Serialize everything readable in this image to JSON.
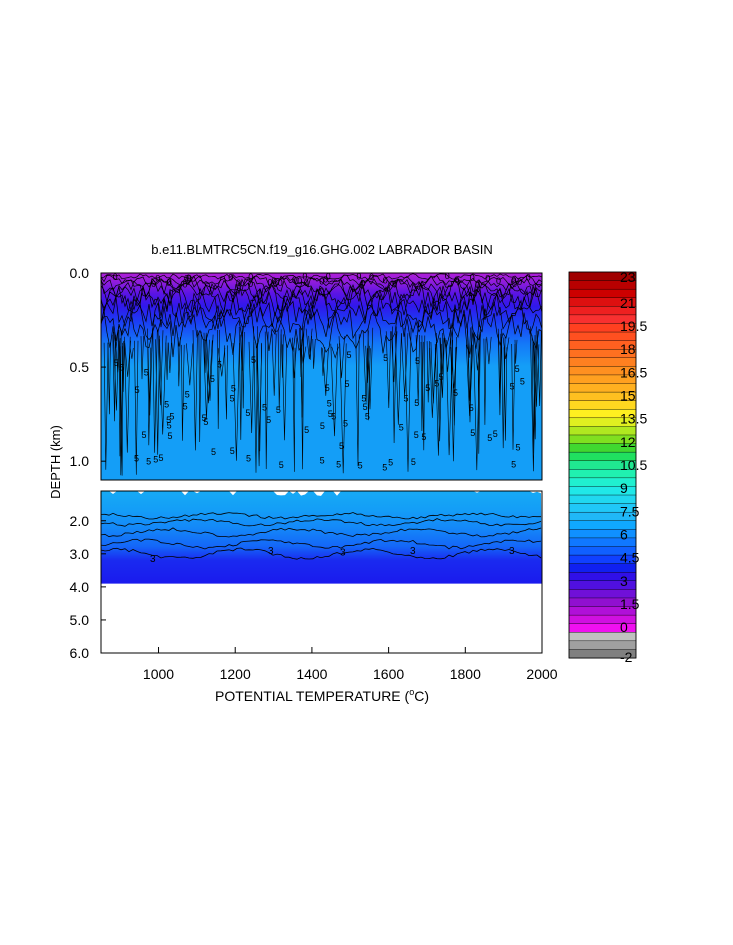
{
  "chart_data": {
    "type": "heatmap",
    "title": "b.e11.BLMTRC5CN.f19_g16.GHG.002 LABRADOR BASIN",
    "xlabel": "POTENTIAL TEMPERATURE (",
    "xlabel_unit": "o",
    "xlabel_suffix": "C)",
    "ylabel": "DEPTH (km)",
    "xlim": [
      850,
      2000
    ],
    "x_ticks": [
      "1000",
      "1200",
      "1400",
      "1600",
      "1800",
      "2000"
    ],
    "x_tick_values": [
      1000,
      1200,
      1400,
      1600,
      1800,
      2000
    ],
    "upper_panel": {
      "ylim": [
        0.0,
        1.1
      ],
      "y_ticks": [
        "0.0",
        "0.5",
        "1.0"
      ],
      "y_tick_values": [
        0.0,
        0.5,
        1.0
      ],
      "contour_label": "5"
    },
    "lower_panel": {
      "ylim": [
        1.1,
        6.0
      ],
      "y_ticks": [
        "2.0",
        "3.0",
        "4.0",
        "5.0",
        "6.0"
      ],
      "y_tick_values": [
        2.0,
        3.0,
        4.0,
        5.0,
        6.0
      ],
      "bottom_depth_km": 3.9,
      "contour_label": "3"
    },
    "colorbar": {
      "labels": [
        "23",
        "21",
        "19.5",
        "18",
        "16.5",
        "15",
        "13.5",
        "12",
        "10.5",
        "9",
        "7.5",
        "6",
        "4.5",
        "3",
        "1.5",
        "0",
        "-2"
      ],
      "label_values": [
        23,
        21,
        19.5,
        18,
        16.5,
        15,
        13.5,
        12,
        10.5,
        9,
        7.5,
        6,
        4.5,
        3,
        1.5,
        0,
        -2
      ],
      "colors_top_to_bottom": [
        "#a00000",
        "#b80000",
        "#cc0000",
        "#dd1010",
        "#ee2020",
        "#f83030",
        "#ff4020",
        "#ff5020",
        "#ff6020",
        "#ff7020",
        "#ff8020",
        "#ff9020",
        "#ffa020",
        "#ffb020",
        "#ffc020",
        "#ffd820",
        "#fff020",
        "#e0f020",
        "#b0e820",
        "#80e020",
        "#40d830",
        "#20e060",
        "#20e890",
        "#20f0b0",
        "#20f0d0",
        "#20e8e8",
        "#20d8f0",
        "#20c8f8",
        "#20b8f8",
        "#10a8ff",
        "#1090ff",
        "#1078ff",
        "#1060ff",
        "#1040ff",
        "#1020f0",
        "#3010e8",
        "#5010e0",
        "#7010d8",
        "#9010d0",
        "#b010d8",
        "#d010e0",
        "#f010f0",
        "#c0c0c0",
        "#a0a0a0",
        "#808080"
      ]
    },
    "colors": {
      "deep_blue": "#1a1aee",
      "mid_blue": "#149ef7",
      "light_blue": "#16aaf5",
      "surface_purple": "#9a20d8"
    }
  }
}
